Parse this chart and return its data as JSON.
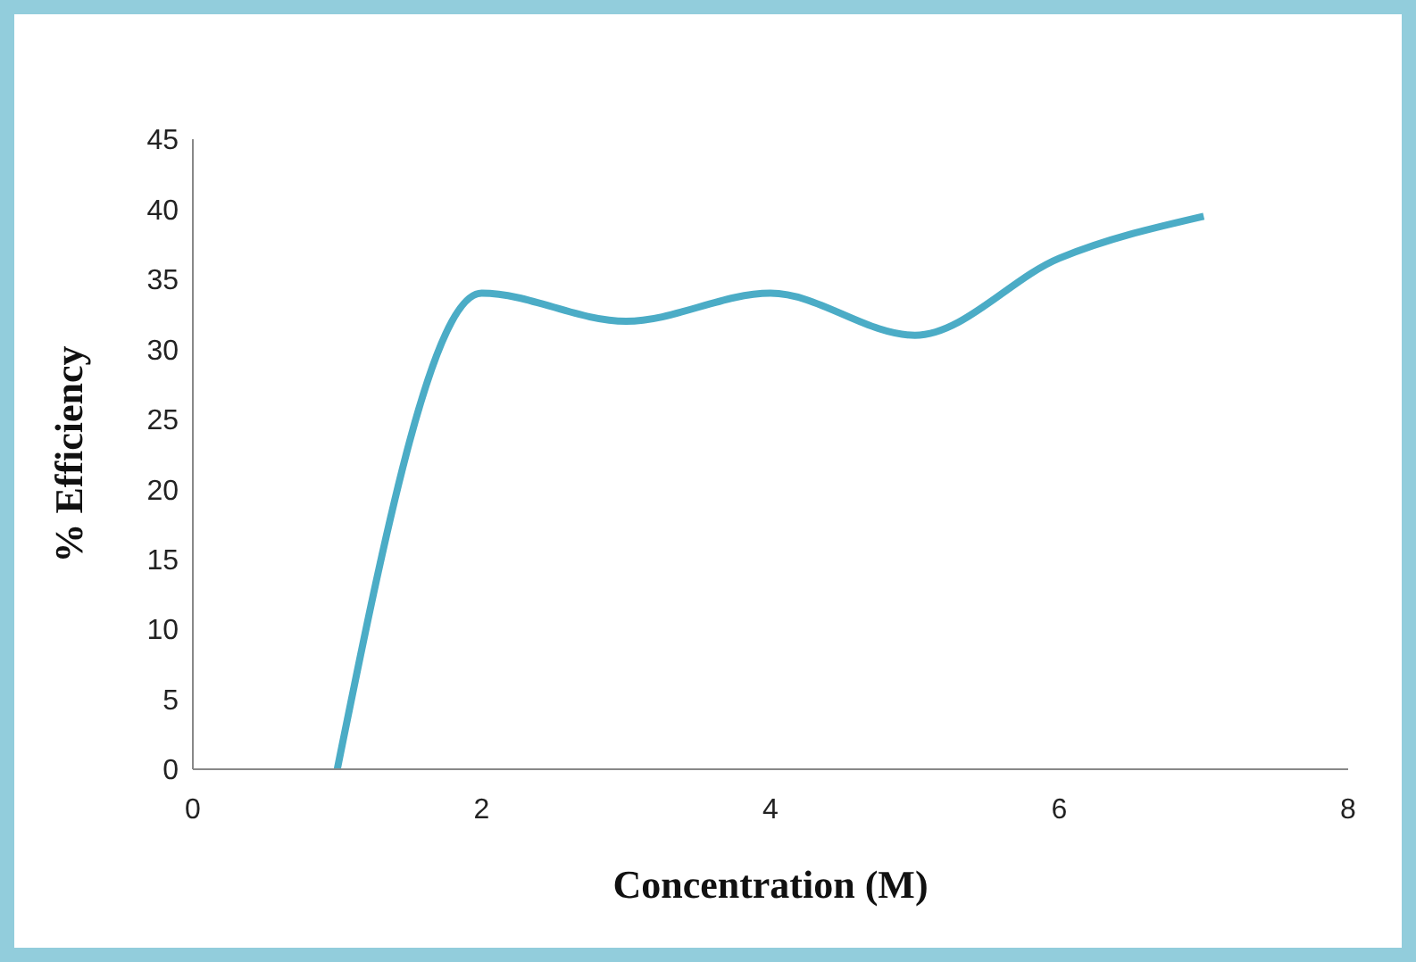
{
  "chart_data": {
    "type": "line",
    "xlabel": "Concentration  (M)",
    "ylabel": "% Efficiency",
    "x": [
      1,
      2,
      3,
      4,
      5,
      6,
      7
    ],
    "series": [
      {
        "color": "#4bacc6",
        "values": [
          0,
          34,
          32,
          34,
          31,
          36.5,
          39.5
        ]
      }
    ],
    "xlim": [
      0,
      8
    ],
    "xticks": [
      0,
      2,
      4,
      6,
      8
    ],
    "ylim": [
      0,
      45
    ],
    "yticks": [
      0,
      5,
      10,
      15,
      20,
      25,
      30,
      35,
      40,
      45
    ],
    "grid": false,
    "legend": false,
    "marker": "none",
    "line_style": "solid"
  }
}
